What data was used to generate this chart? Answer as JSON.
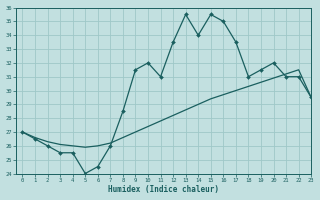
{
  "xlabel": "Humidex (Indice chaleur)",
  "bg_color": "#c2e0e0",
  "grid_color": "#9fc8c8",
  "line_color": "#1a5f5f",
  "x_values": [
    0,
    1,
    2,
    3,
    4,
    5,
    6,
    7,
    8,
    9,
    10,
    11,
    12,
    13,
    14,
    15,
    16,
    17,
    18,
    19,
    20,
    21,
    22,
    23
  ],
  "jagged_y": [
    27,
    26.5,
    26,
    25.5,
    25.5,
    24,
    24.5,
    26,
    28.5,
    31.5,
    32,
    31,
    33.5,
    35.5,
    34,
    35.5,
    35,
    33.5,
    31,
    31.5,
    32,
    31,
    31,
    29.5
  ],
  "trend_y": [
    27,
    26.6,
    26.3,
    26.1,
    26.0,
    25.9,
    26.0,
    26.2,
    26.6,
    27.0,
    27.4,
    27.8,
    28.2,
    28.6,
    29.0,
    29.4,
    29.7,
    30.0,
    30.3,
    30.6,
    30.9,
    31.2,
    31.5,
    29.5
  ],
  "ylim": [
    24,
    36
  ],
  "yticks": [
    24,
    25,
    26,
    27,
    28,
    29,
    30,
    31,
    32,
    33,
    34,
    35,
    36
  ],
  "xlim": [
    -0.5,
    23
  ],
  "xticks": [
    0,
    1,
    2,
    3,
    4,
    5,
    6,
    7,
    8,
    9,
    10,
    11,
    12,
    13,
    14,
    15,
    16,
    17,
    18,
    19,
    20,
    21,
    22,
    23
  ]
}
